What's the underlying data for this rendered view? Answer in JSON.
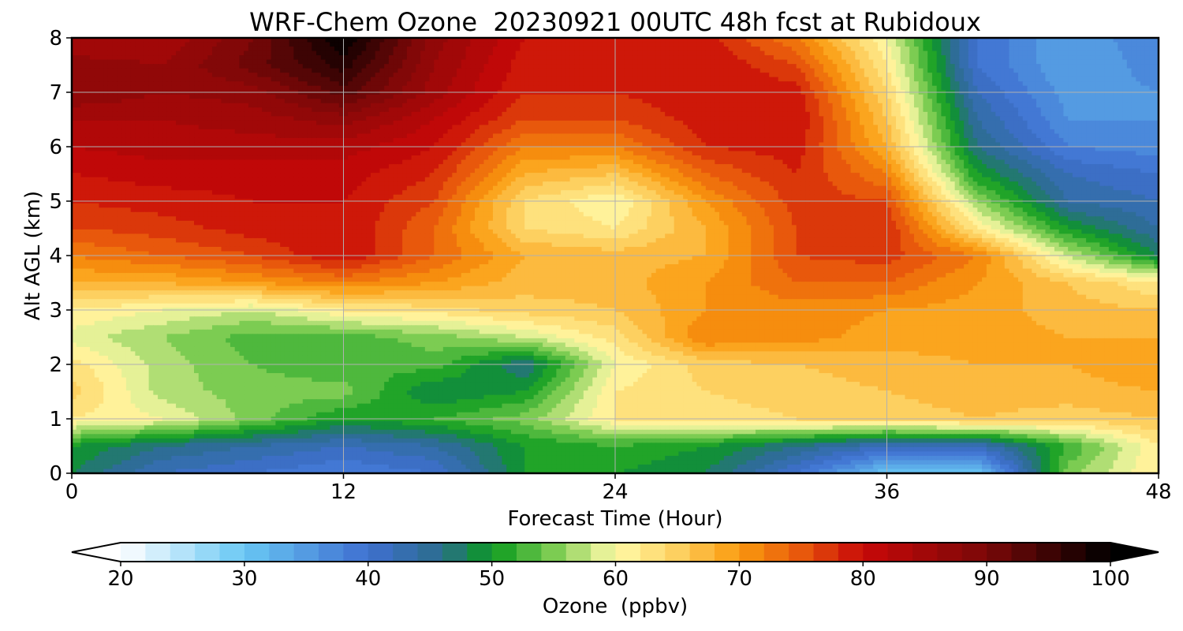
{
  "chart_data": {
    "type": "heatmap",
    "title": "WRF-Chem Ozone  20230921 00UTC 48h fcst at Rubidoux",
    "xlabel": "Forecast Time (Hour)",
    "ylabel": "Alt AGL (km)",
    "xlim": [
      0,
      48
    ],
    "ylim": [
      0,
      8
    ],
    "x_ticks": [
      "0",
      "12",
      "24",
      "36",
      "48"
    ],
    "y_ticks": [
      "0",
      "1",
      "2",
      "3",
      "4",
      "5",
      "6",
      "7",
      "8"
    ],
    "grid": true,
    "x": [
      0,
      4,
      8,
      12,
      16,
      20,
      24,
      28,
      32,
      36,
      40,
      44,
      48
    ],
    "y": [
      0,
      0.5,
      1,
      1.5,
      2,
      2.5,
      3,
      3.5,
      4,
      4.5,
      5,
      5.5,
      6,
      6.5,
      7,
      7.5,
      8
    ],
    "z": [
      [
        48,
        42,
        40,
        38,
        40,
        50,
        50,
        48,
        40,
        30,
        30,
        55,
        62
      ],
      [
        50,
        46,
        44,
        42,
        44,
        50,
        52,
        50,
        46,
        42,
        42,
        52,
        62
      ],
      [
        62,
        60,
        55,
        50,
        52,
        55,
        62,
        63,
        64,
        65,
        66,
        65,
        66
      ],
      [
        65,
        57,
        55,
        55,
        48,
        50,
        62,
        64,
        65,
        66,
        67,
        67,
        68
      ],
      [
        63,
        57,
        54,
        52,
        53,
        46,
        60,
        65,
        66,
        67,
        68,
        68,
        70
      ],
      [
        59,
        56,
        53,
        53,
        55,
        58,
        63,
        72,
        71,
        69,
        69,
        68,
        68
      ],
      [
        62,
        60,
        58,
        62,
        63,
        65,
        66,
        70,
        71,
        70,
        69,
        67,
        66
      ],
      [
        68,
        68,
        70,
        72,
        70,
        67,
        67,
        70,
        74,
        74,
        70,
        66,
        62
      ],
      [
        72,
        74,
        76,
        80,
        74,
        68,
        67,
        68,
        76,
        77,
        72,
        58,
        48
      ],
      [
        76,
        77,
        79,
        80,
        74,
        64,
        62,
        68,
        76,
        78,
        62,
        50,
        44
      ],
      [
        78,
        79,
        80,
        80,
        76,
        64,
        60,
        70,
        77,
        76,
        56,
        44,
        42
      ],
      [
        80,
        81,
        81,
        81,
        78,
        68,
        66,
        74,
        78,
        72,
        50,
        42,
        40
      ],
      [
        82,
        83,
        83,
        83,
        80,
        72,
        72,
        78,
        79,
        68,
        46,
        38,
        37
      ],
      [
        84,
        84,
        85,
        87,
        82,
        76,
        76,
        79,
        80,
        66,
        44,
        36,
        36
      ],
      [
        88,
        86,
        87,
        93,
        85,
        78,
        78,
        80,
        79,
        64,
        42,
        35,
        36
      ],
      [
        87,
        86,
        91,
        97,
        86,
        79,
        79,
        80,
        76,
        62,
        40,
        34,
        37
      ],
      [
        84,
        84,
        90,
        100,
        87,
        80,
        80,
        79,
        72,
        60,
        40,
        34,
        38
      ]
    ],
    "colorbar": {
      "label": "Ozone  (ppbv)",
      "range": [
        20,
        100
      ],
      "extend": "both",
      "ticks": [
        "20",
        "30",
        "40",
        "50",
        "60",
        "70",
        "80",
        "90",
        "100"
      ],
      "stops": [
        {
          "v": 20,
          "c": "#ffffff"
        },
        {
          "v": 30,
          "c": "#68c7f4"
        },
        {
          "v": 40,
          "c": "#3f6fd0"
        },
        {
          "v": 46,
          "c": "#2b6c8c"
        },
        {
          "v": 50,
          "c": "#0a9a1e"
        },
        {
          "v": 55,
          "c": "#7ccc52"
        },
        {
          "v": 60,
          "c": "#fffaa8"
        },
        {
          "v": 65,
          "c": "#fdd060"
        },
        {
          "v": 70,
          "c": "#fa9a0e"
        },
        {
          "v": 75,
          "c": "#e8580c"
        },
        {
          "v": 80,
          "c": "#c80808"
        },
        {
          "v": 90,
          "c": "#7a0808"
        },
        {
          "v": 100,
          "c": "#000000"
        }
      ]
    }
  }
}
